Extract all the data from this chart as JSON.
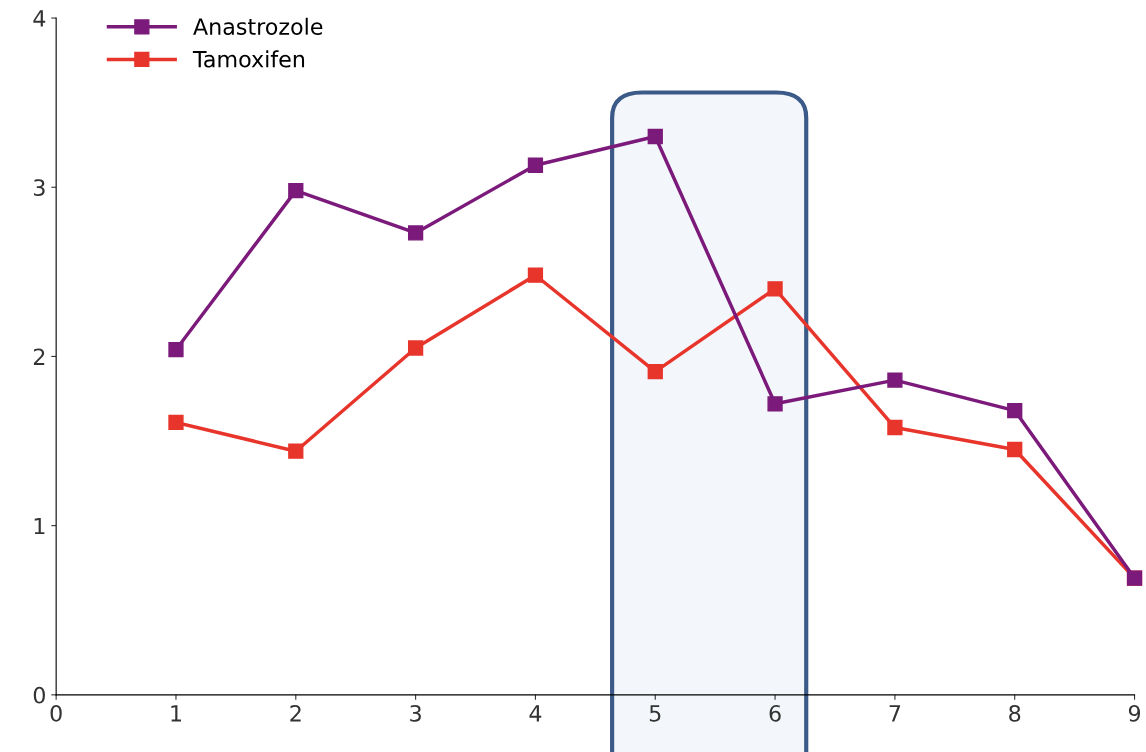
{
  "chart_data": {
    "type": "line",
    "x": [
      1,
      2,
      3,
      4,
      5,
      6,
      7,
      8,
      9
    ],
    "series": [
      {
        "name": "Anastrozole",
        "color": "#7b1a7b",
        "values": [
          2.04,
          2.98,
          2.73,
          3.13,
          3.3,
          1.72,
          1.86,
          1.68,
          0.69
        ]
      },
      {
        "name": "Tamoxifen",
        "color": "#e8352b",
        "values": [
          1.61,
          1.44,
          2.05,
          2.48,
          1.91,
          2.4,
          1.58,
          1.45,
          0.69
        ]
      }
    ],
    "xlim": [
      0,
      9
    ],
    "xticks": [
      0,
      1,
      2,
      3,
      4,
      5,
      6,
      7,
      8,
      9
    ],
    "ylim": [
      0,
      4
    ],
    "yticks": [
      0,
      1,
      2,
      3,
      4
    ],
    "bands": [
      {
        "axis": "x",
        "from": 4.64,
        "to": 6.26,
        "color": "#f3f7fb"
      }
    ],
    "grid": false,
    "legend": "top left",
    "marker": "square",
    "line_style": "solid"
  }
}
